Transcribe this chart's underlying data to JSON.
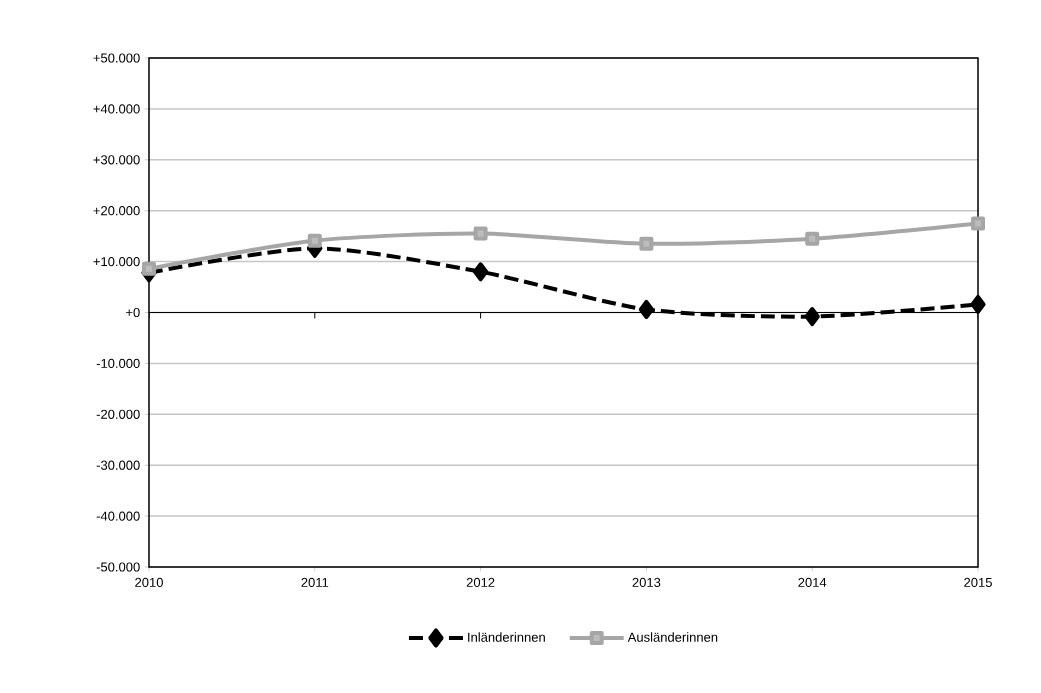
{
  "chart_data": {
    "type": "line",
    "x": [
      2010,
      2011,
      2012,
      2013,
      2014,
      2015
    ],
    "series": [
      {
        "name": "Inländerinnen",
        "color": "#000000",
        "marker": "diamond",
        "line_style": "dashed",
        "values": [
          7800,
          12600,
          8000,
          600,
          -800,
          1600
        ]
      },
      {
        "name": "Ausländerinnen",
        "color": "#a6a6a6",
        "marker": "square",
        "line_style": "solid",
        "values": [
          8600,
          14100,
          15500,
          13500,
          14500,
          17500
        ]
      }
    ],
    "xlim": [
      2010,
      2015
    ],
    "xticks": [
      2010,
      2011,
      2012,
      2013,
      2014,
      2015
    ],
    "ylim": [
      -50000,
      50000
    ],
    "yticks": [
      {
        "value": -50000,
        "label": "-50.000"
      },
      {
        "value": -40000,
        "label": "-40.000"
      },
      {
        "value": -30000,
        "label": "-30.000"
      },
      {
        "value": -20000,
        "label": "-20.000"
      },
      {
        "value": -10000,
        "label": "-10.000"
      },
      {
        "value": 0,
        "label": "+0"
      },
      {
        "value": 10000,
        "label": "+10.000"
      },
      {
        "value": 20000,
        "label": "+20.000"
      },
      {
        "value": 30000,
        "label": "+30.000"
      },
      {
        "value": 40000,
        "label": "+40.000"
      },
      {
        "value": 50000,
        "label": "+50.000"
      }
    ],
    "ref_lines": [
      {
        "axis": "y",
        "value": 0,
        "color": "#000000"
      }
    ],
    "grid": "y",
    "legend": "bottom"
  }
}
